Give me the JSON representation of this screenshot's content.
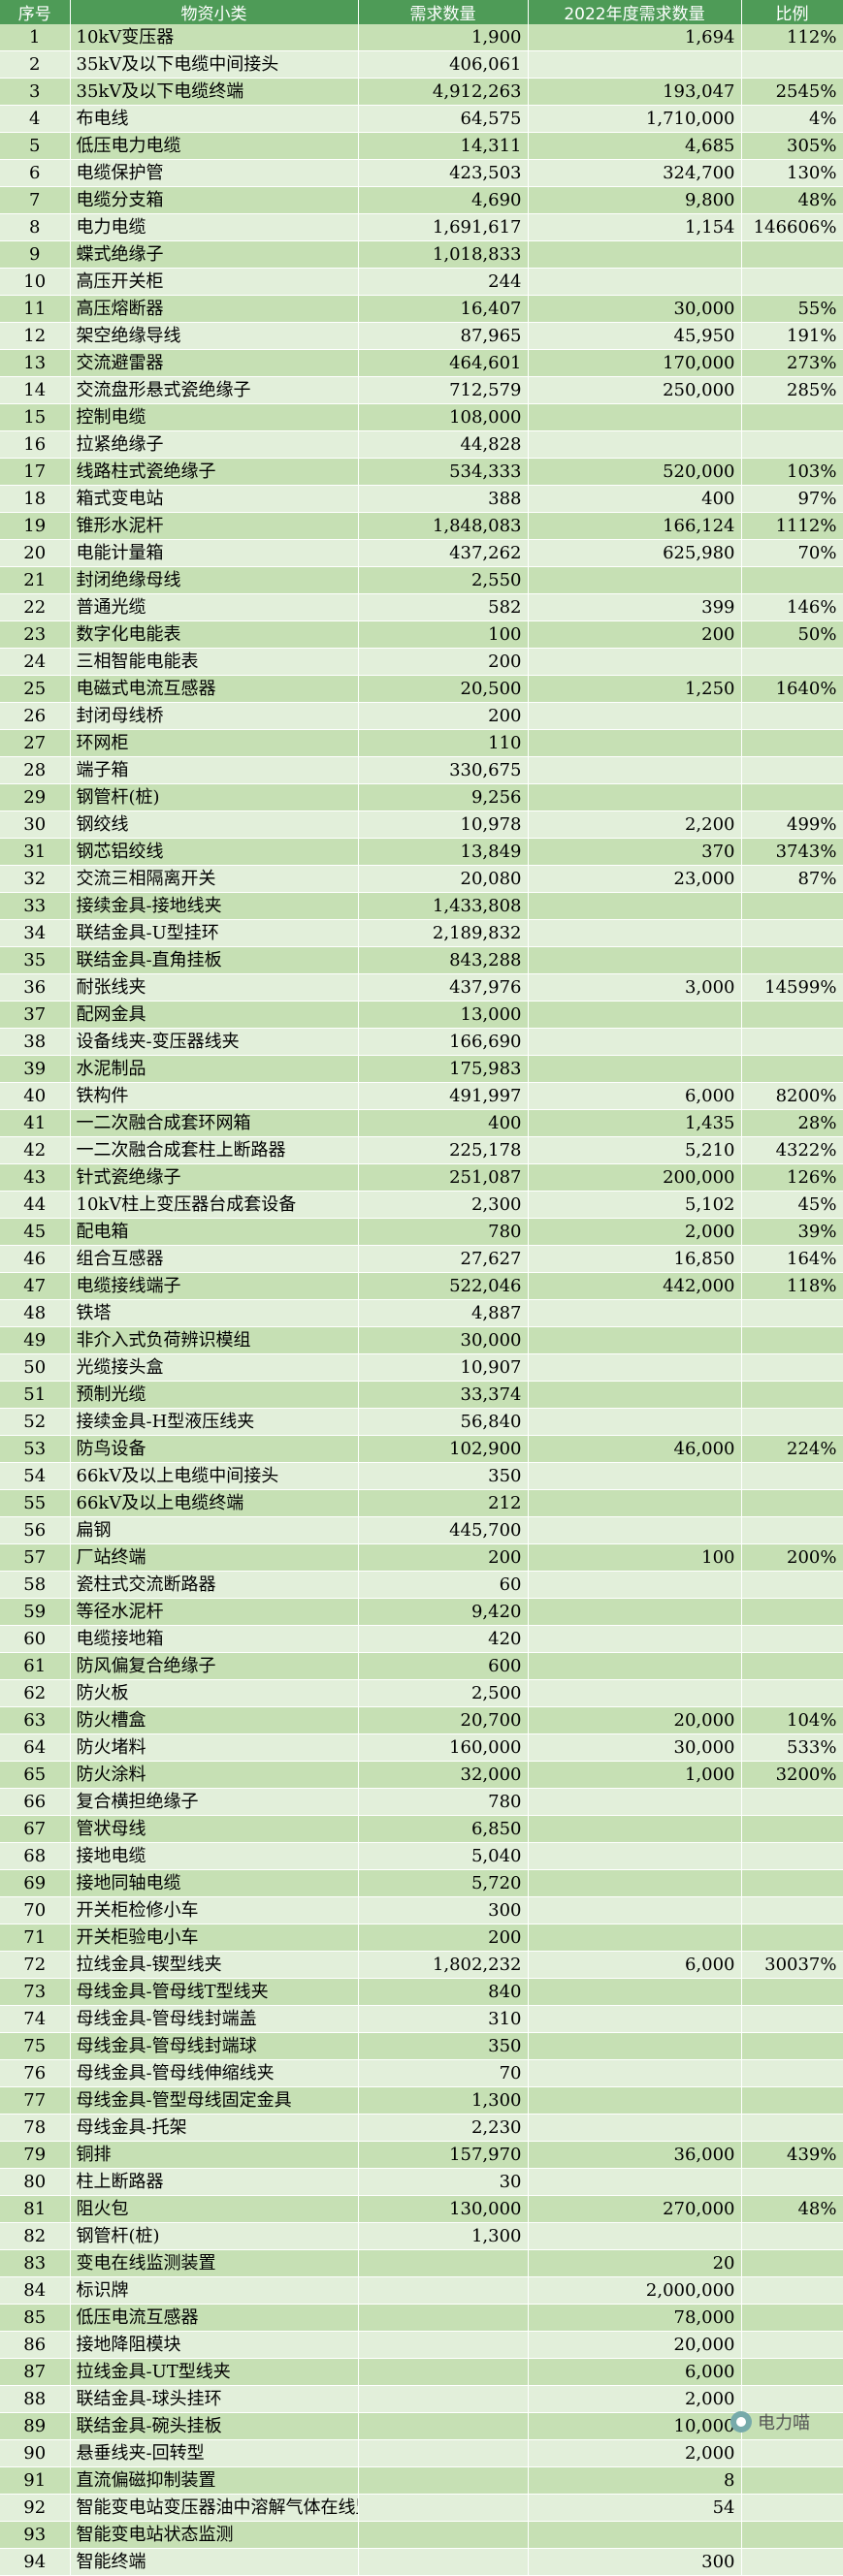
{
  "headers": [
    "序号",
    "物资小类",
    "需求数量",
    "2022年度需求数量",
    "比例"
  ],
  "rows": [
    [
      "1",
      "10kV变压器",
      "1,900",
      "1,694",
      "112%"
    ],
    [
      "2",
      "35kV及以下电缆中间接头",
      "406,061",
      "",
      ""
    ],
    [
      "3",
      "35kV及以下电缆终端",
      "4,912,263",
      "193,047",
      "2545%"
    ],
    [
      "4",
      "布电线",
      "64,575",
      "1,710,000",
      "4%"
    ],
    [
      "5",
      "低压电力电缆",
      "14,311",
      "4,685",
      "305%"
    ],
    [
      "6",
      "电缆保护管",
      "423,503",
      "324,700",
      "130%"
    ],
    [
      "7",
      "电缆分支箱",
      "4,690",
      "9,800",
      "48%"
    ],
    [
      "8",
      "电力电缆",
      "1,691,617",
      "1,154",
      "146606%"
    ],
    [
      "9",
      "蝶式绝缘子",
      "1,018,833",
      "",
      ""
    ],
    [
      "10",
      "高压开关柜",
      "244",
      "",
      ""
    ],
    [
      "11",
      "高压熔断器",
      "16,407",
      "30,000",
      "55%"
    ],
    [
      "12",
      "架空绝缘导线",
      "87,965",
      "45,950",
      "191%"
    ],
    [
      "13",
      "交流避雷器",
      "464,601",
      "170,000",
      "273%"
    ],
    [
      "14",
      "交流盘形悬式瓷绝缘子",
      "712,579",
      "250,000",
      "285%"
    ],
    [
      "15",
      "控制电缆",
      "108,000",
      "",
      ""
    ],
    [
      "16",
      "拉紧绝缘子",
      "44,828",
      "",
      ""
    ],
    [
      "17",
      "线路柱式瓷绝缘子",
      "534,333",
      "520,000",
      "103%"
    ],
    [
      "18",
      "箱式变电站",
      "388",
      "400",
      "97%"
    ],
    [
      "19",
      "锥形水泥杆",
      "1,848,083",
      "166,124",
      "1112%"
    ],
    [
      "20",
      "电能计量箱",
      "437,262",
      "625,980",
      "70%"
    ],
    [
      "21",
      "封闭绝缘母线",
      "2,550",
      "",
      ""
    ],
    [
      "22",
      "普通光缆",
      "582",
      "399",
      "146%"
    ],
    [
      "23",
      "数字化电能表",
      "100",
      "200",
      "50%"
    ],
    [
      "24",
      "三相智能电能表",
      "200",
      "",
      ""
    ],
    [
      "25",
      "电磁式电流互感器",
      "20,500",
      "1,250",
      "1640%"
    ],
    [
      "26",
      "封闭母线桥",
      "200",
      "",
      ""
    ],
    [
      "27",
      "环网柜",
      "110",
      "",
      ""
    ],
    [
      "28",
      "端子箱",
      "330,675",
      "",
      ""
    ],
    [
      "29",
      "钢管杆(桩)",
      "9,256",
      "",
      ""
    ],
    [
      "30",
      "钢绞线",
      "10,978",
      "2,200",
      "499%"
    ],
    [
      "31",
      "钢芯铝绞线",
      "13,849",
      "370",
      "3743%"
    ],
    [
      "32",
      "交流三相隔离开关",
      "20,080",
      "23,000",
      "87%"
    ],
    [
      "33",
      "接续金具-接地线夹",
      "1,433,808",
      "",
      ""
    ],
    [
      "34",
      "联结金具-U型挂环",
      "2,189,832",
      "",
      ""
    ],
    [
      "35",
      "联结金具-直角挂板",
      "843,288",
      "",
      ""
    ],
    [
      "36",
      "耐张线夹",
      "437,976",
      "3,000",
      "14599%"
    ],
    [
      "37",
      "配网金具",
      "13,000",
      "",
      ""
    ],
    [
      "38",
      "设备线夹-变压器线夹",
      "166,690",
      "",
      ""
    ],
    [
      "39",
      "水泥制品",
      "175,983",
      "",
      ""
    ],
    [
      "40",
      "铁构件",
      "491,997",
      "6,000",
      "8200%"
    ],
    [
      "41",
      "一二次融合成套环网箱",
      "400",
      "1,435",
      "28%"
    ],
    [
      "42",
      "一二次融合成套柱上断路器",
      "225,178",
      "5,210",
      "4322%"
    ],
    [
      "43",
      "针式瓷绝缘子",
      "251,087",
      "200,000",
      "126%"
    ],
    [
      "44",
      "10kV柱上变压器台成套设备",
      "2,300",
      "5,102",
      "45%"
    ],
    [
      "45",
      "配电箱",
      "780",
      "2,000",
      "39%"
    ],
    [
      "46",
      "组合互感器",
      "27,627",
      "16,850",
      "164%"
    ],
    [
      "47",
      "电缆接线端子",
      "522,046",
      "442,000",
      "118%"
    ],
    [
      "48",
      "铁塔",
      "4,887",
      "",
      ""
    ],
    [
      "49",
      "非介入式负荷辨识模组",
      "30,000",
      "",
      ""
    ],
    [
      "50",
      "光缆接头盒",
      "10,907",
      "",
      ""
    ],
    [
      "51",
      "预制光缆",
      "33,374",
      "",
      ""
    ],
    [
      "52",
      "接续金具-H型液压线夹",
      "56,840",
      "",
      ""
    ],
    [
      "53",
      "防鸟设备",
      "102,900",
      "46,000",
      "224%"
    ],
    [
      "54",
      "66kV及以上电缆中间接头",
      "350",
      "",
      ""
    ],
    [
      "55",
      "66kV及以上电缆终端",
      "212",
      "",
      ""
    ],
    [
      "56",
      "扁钢",
      "445,700",
      "",
      ""
    ],
    [
      "57",
      "厂站终端",
      "200",
      "100",
      "200%"
    ],
    [
      "58",
      "瓷柱式交流断路器",
      "60",
      "",
      ""
    ],
    [
      "59",
      "等径水泥杆",
      "9,420",
      "",
      ""
    ],
    [
      "60",
      "电缆接地箱",
      "420",
      "",
      ""
    ],
    [
      "61",
      "防风偏复合绝缘子",
      "600",
      "",
      ""
    ],
    [
      "62",
      "防火板",
      "2,500",
      "",
      ""
    ],
    [
      "63",
      "防火槽盒",
      "20,700",
      "20,000",
      "104%"
    ],
    [
      "64",
      "防火堵料",
      "160,000",
      "30,000",
      "533%"
    ],
    [
      "65",
      "防火涂料",
      "32,000",
      "1,000",
      "3200%"
    ],
    [
      "66",
      "复合横担绝缘子",
      "780",
      "",
      ""
    ],
    [
      "67",
      "管状母线",
      "6,850",
      "",
      ""
    ],
    [
      "68",
      "接地电缆",
      "5,040",
      "",
      ""
    ],
    [
      "69",
      "接地同轴电缆",
      "5,720",
      "",
      ""
    ],
    [
      "70",
      "开关柜检修小车",
      "300",
      "",
      ""
    ],
    [
      "71",
      "开关柜验电小车",
      "200",
      "",
      ""
    ],
    [
      "72",
      "拉线金具-锲型线夹",
      "1,802,232",
      "6,000",
      "30037%"
    ],
    [
      "73",
      "母线金具-管母线T型线夹",
      "840",
      "",
      ""
    ],
    [
      "74",
      "母线金具-管母线封端盖",
      "310",
      "",
      ""
    ],
    [
      "75",
      "母线金具-管母线封端球",
      "350",
      "",
      ""
    ],
    [
      "76",
      "母线金具-管母线伸缩线夹",
      "70",
      "",
      ""
    ],
    [
      "77",
      "母线金具-管型母线固定金具",
      "1,300",
      "",
      ""
    ],
    [
      "78",
      "母线金具-托架",
      "2,230",
      "",
      ""
    ],
    [
      "79",
      "铜排",
      "157,970",
      "36,000",
      "439%"
    ],
    [
      "80",
      "柱上断路器",
      "30",
      "",
      ""
    ],
    [
      "81",
      "阻火包",
      "130,000",
      "270,000",
      "48%"
    ],
    [
      "82",
      "钢管杆(桩)",
      "1,300",
      "",
      ""
    ],
    [
      "83",
      "变电在线监测装置",
      "",
      "20",
      ""
    ],
    [
      "84",
      "标识牌",
      "",
      "2,000,000",
      ""
    ],
    [
      "85",
      "低压电流互感器",
      "",
      "78,000",
      ""
    ],
    [
      "86",
      "接地降阻模块",
      "",
      "20,000",
      ""
    ],
    [
      "87",
      "拉线金具-UT型线夹",
      "",
      "6,000",
      ""
    ],
    [
      "88",
      "联结金具-球头挂环",
      "",
      "2,000",
      ""
    ],
    [
      "89",
      "联结金具-碗头挂板",
      "",
      "10,000",
      ""
    ],
    [
      "90",
      "悬垂线夹-回转型",
      "",
      "2,000",
      ""
    ],
    [
      "91",
      "直流偏磁抑制装置",
      "",
      "8",
      ""
    ],
    [
      "92",
      "智能变电站变压器油中溶解气体在线监测装置",
      "",
      "54",
      ""
    ],
    [
      "93",
      "智能变电站状态监测",
      "",
      "",
      ""
    ],
    [
      "94",
      "智能终端",
      "",
      "300",
      ""
    ]
  ],
  "watermark": "电力喵"
}
